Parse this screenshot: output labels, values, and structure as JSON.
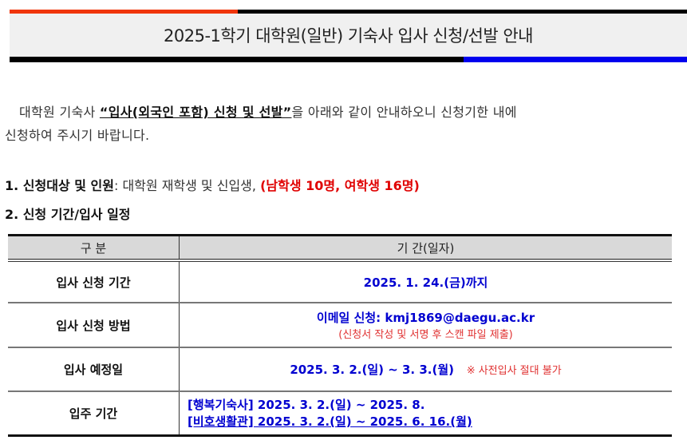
{
  "header": {
    "title": "2025-1학기 대학원(일반) 기숙사 입사 신청/선발 안내",
    "colors": {
      "top_left": "#f0350a",
      "bottom_right": "#0000ee"
    }
  },
  "intro": {
    "pre": "대학원 기숙사 ",
    "highlight": "“입사(외국인 포함) 신청 및 선발”",
    "post": "을 아래와 같이 안내하오니 신청기한 내에",
    "line2": "신청하여 주시기 바랍니다."
  },
  "section1": {
    "label": "1. 신청대상 및 인원",
    "text": ": 대학원 재학생 및 신입생, ",
    "red": "(남학생 10명, 여학생 16명)"
  },
  "section2": {
    "label": "2. 신청 기간/입사 일정"
  },
  "table": {
    "headers": [
      "구 분",
      "기 간(일자)"
    ],
    "rows": [
      {
        "label": "입사 신청 기간",
        "value": "2025. 1. 24.(금)까지"
      },
      {
        "label": "입사 신청 방법",
        "value_prefix": "이메일 신청: ",
        "email": "kmj1869@daegu.ac.kr",
        "note": "(신청서 작성 및 서명 후 스캔 파일 제출)"
      },
      {
        "label": "입사 예정일",
        "value": "2025. 3. 2.(일) ~ 3. 3.(월)",
        "note": "※ 사전입사 절대 불가"
      },
      {
        "label": "입주 기간",
        "line1": "[행복기숙사] 2025. 3. 2.(일) ~ 2025. 8.",
        "line2": "[비호생활관] 2025. 3. 2.(일) ~ 2025. 6. 16.(월)"
      }
    ]
  }
}
